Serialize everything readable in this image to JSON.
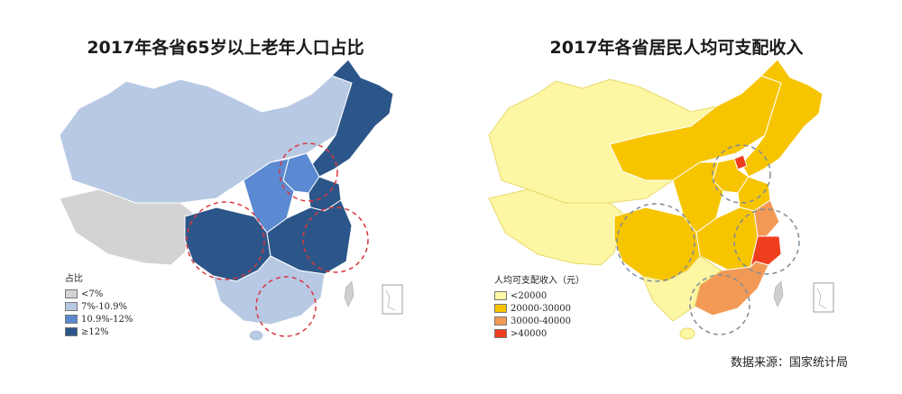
{
  "maps": [
    {
      "title": "2017年各省65岁以上老年人口占比",
      "legend_title": "占比",
      "legend": [
        {
          "label": "<7%",
          "color": "#d3d3d3"
        },
        {
          "label": "7%-10.9%",
          "color": "#b8c9e4"
        },
        {
          "label": "10.9%-12%",
          "color": "#5b8ad2"
        },
        {
          "label": "≥12%",
          "color": "#2c5689"
        }
      ],
      "circle_color": "#d9363e"
    },
    {
      "title": "2017年各省居民人均可支配收入",
      "legend_title": "人均可支配收入（元）",
      "legend": [
        {
          "label": "<20000",
          "color": "#fdf6a3"
        },
        {
          "label": "20000-30000",
          "color": "#f7c400"
        },
        {
          "label": "30000-40000",
          "color": "#f29a55"
        },
        {
          "label": ">40000",
          "color": "#ef3e1d"
        }
      ],
      "circle_color": "#7d8c99"
    }
  ],
  "source": "数据来源：国家统计局"
}
